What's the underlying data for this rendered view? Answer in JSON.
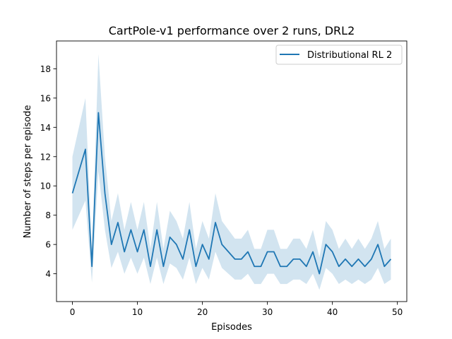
{
  "chart_data": {
    "type": "line",
    "title": "CartPole-v1 performance over 2 runs, DRL2",
    "xlabel": "Episodes",
    "ylabel": "Number of steps per episode",
    "xlim": [
      -2.45,
      51.45
    ],
    "ylim": [
      2.1,
      19.9
    ],
    "xticks": [
      0,
      10,
      20,
      30,
      40,
      50
    ],
    "yticks": [
      4,
      6,
      8,
      10,
      12,
      14,
      16,
      18
    ],
    "grid": false,
    "legend": "top-right",
    "series": [
      {
        "name": "Distributional RL 2",
        "color": "#1f77b4",
        "band_color": "#1f77b4",
        "x": [
          0,
          1,
          2,
          3,
          4,
          5,
          6,
          7,
          8,
          9,
          10,
          11,
          12,
          13,
          14,
          15,
          16,
          17,
          18,
          19,
          20,
          21,
          22,
          23,
          24,
          25,
          26,
          27,
          28,
          29,
          30,
          31,
          32,
          33,
          34,
          35,
          36,
          37,
          38,
          39,
          40,
          41,
          42,
          43,
          44,
          45,
          46,
          47,
          48,
          49
        ],
        "values": [
          9.5,
          11,
          12.5,
          4.5,
          15,
          9.5,
          6,
          7.5,
          5.5,
          7,
          5.5,
          7,
          4.5,
          7,
          4.5,
          6.5,
          6,
          5,
          7,
          4.5,
          6,
          5,
          7.5,
          6,
          5.5,
          5,
          5,
          5.5,
          4.5,
          4.5,
          5.5,
          5.5,
          4.5,
          4.5,
          5,
          5,
          4.5,
          5.5,
          4,
          6,
          5.5,
          4.5,
          5,
          4.5,
          5,
          4.5,
          5,
          6,
          4.5,
          5
        ],
        "lower": [
          7.0,
          8.0,
          9.0,
          3.4,
          11.0,
          7.0,
          4.4,
          5.5,
          4.0,
          5.1,
          4.0,
          5.1,
          3.3,
          5.1,
          3.3,
          4.7,
          4.4,
          3.6,
          5.1,
          3.3,
          4.4,
          3.6,
          5.5,
          4.4,
          4.0,
          3.6,
          3.6,
          4.0,
          3.3,
          3.3,
          4.0,
          4.0,
          3.3,
          3.3,
          3.6,
          3.6,
          3.3,
          4.0,
          2.9,
          4.4,
          4.0,
          3.3,
          3.6,
          3.3,
          3.6,
          3.3,
          3.6,
          4.4,
          3.3,
          3.6
        ],
        "upper": [
          12.0,
          14.0,
          16.0,
          5.6,
          19.0,
          12.0,
          7.6,
          9.5,
          7.0,
          8.9,
          7.0,
          8.9,
          5.7,
          8.9,
          5.7,
          8.3,
          7.6,
          6.4,
          8.9,
          5.7,
          7.6,
          6.4,
          9.5,
          7.6,
          7.0,
          6.4,
          6.4,
          7.0,
          5.7,
          5.7,
          7.0,
          7.0,
          5.7,
          5.7,
          6.4,
          6.4,
          5.7,
          7.0,
          5.1,
          7.6,
          7.0,
          5.7,
          6.4,
          5.7,
          6.4,
          5.7,
          6.4,
          7.6,
          5.7,
          6.4
        ]
      }
    ]
  }
}
